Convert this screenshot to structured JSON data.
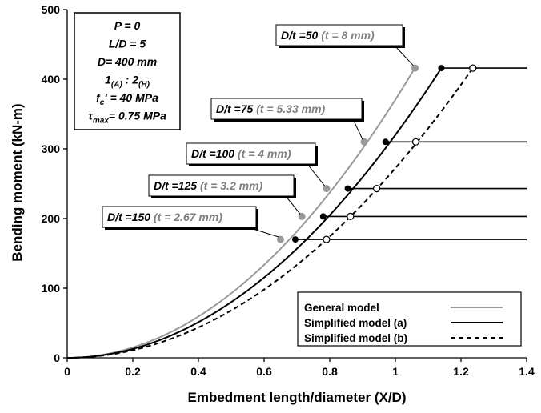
{
  "chart_data": {
    "type": "line",
    "title": "",
    "xlabel": "Embedment length/diameter (X/D)",
    "ylabel": "Bending moment (kN-m)",
    "xlim": [
      0,
      1.4
    ],
    "ylim": [
      0,
      500
    ],
    "xticks": [
      "0",
      "0.2",
      "0.4",
      "0.6",
      "0.8",
      "1",
      "1.2",
      "1.4"
    ],
    "yticks": [
      "0",
      "100",
      "200",
      "300",
      "400",
      "500"
    ],
    "grid": false,
    "legend_position": "bottom-right",
    "series": [
      {
        "name": "General model",
        "style": "solid",
        "color": "#999999",
        "k": 370.7
      },
      {
        "name": "Simplified model (a)",
        "style": "solid",
        "color": "#000000",
        "k": 320
      },
      {
        "name": "Simplified model (b)",
        "style": "dashed",
        "color": "#000000",
        "k": 272.3
      }
    ],
    "yield_points": [
      {
        "label": "D/t =50",
        "thickness": "(t = 8 mm)",
        "moment": 416,
        "x_general": 1.06,
        "x_simplified_a": 1.14,
        "x_simplified_b": 1.236
      },
      {
        "label": "D/t =75",
        "thickness": "(t = 5.33 mm)",
        "moment": 310,
        "x_general": 0.905,
        "x_simplified_a": 0.97,
        "x_simplified_b": 1.062
      },
      {
        "label": "D/t =100",
        "thickness": "(t = 4 mm)",
        "moment": 243,
        "x_general": 0.79,
        "x_simplified_a": 0.855,
        "x_simplified_b": 0.943
      },
      {
        "label": "D/t =125",
        "thickness": "(t = 3.2 mm)",
        "moment": 203,
        "x_general": 0.715,
        "x_simplified_a": 0.78,
        "x_simplified_b": 0.863
      },
      {
        "label": "D/t =150",
        "thickness": "(t = 2.67 mm)",
        "moment": 170,
        "x_general": 0.65,
        "x_simplified_a": 0.695,
        "x_simplified_b": 0.79
      }
    ],
    "parameters": [
      {
        "main": "P = 0"
      },
      {
        "main": "L/D = 5"
      },
      {
        "main": "D= 400 mm"
      },
      {
        "main": "1",
        "sub": "(A)",
        "main2": " : 2",
        "sub2": "(H)"
      },
      {
        "main": "f",
        "sub": "c",
        "main2": "' = 40 MPa"
      },
      {
        "main": "τ",
        "sub": "max",
        "main2": "= 0.75 MPa"
      }
    ]
  }
}
